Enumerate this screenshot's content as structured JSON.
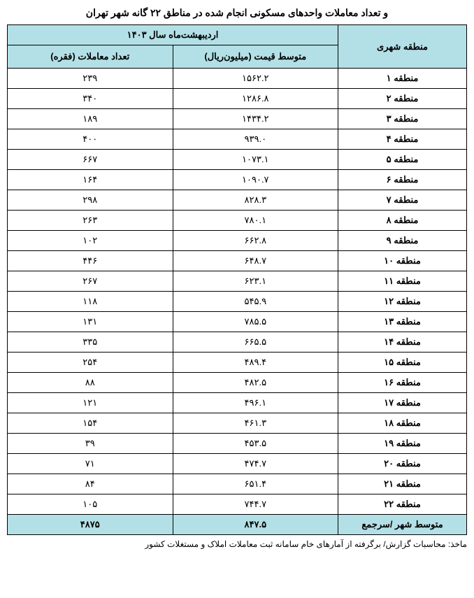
{
  "title": "و تعداد معاملات واحدهای مسکونی انجام شده در مناطق ۲۲ گانه شهر تهران",
  "headers": {
    "district": "منطقه شهری",
    "period": "اردیبهشت‌ماه سال ۱۴۰۳",
    "avgPrice": "متوسط قیمت (میلیون‌ریال)",
    "count": "تعداد معاملات (فقره)"
  },
  "rows": [
    {
      "district": "منطقه ۱",
      "price": "۱۵۶۲.۲",
      "count": "۲۳۹"
    },
    {
      "district": "منطقه ۲",
      "price": "۱۲۸۶.۸",
      "count": "۳۴۰"
    },
    {
      "district": "منطقه ۳",
      "price": "۱۴۳۴.۲",
      "count": "۱۸۹"
    },
    {
      "district": "منطقه ۴",
      "price": "۹۳۹.۰",
      "count": "۴۰۰"
    },
    {
      "district": "منطقه ۵",
      "price": "۱۰۷۳.۱",
      "count": "۶۶۷"
    },
    {
      "district": "منطقه ۶",
      "price": "۱۰۹۰.۷",
      "count": "۱۶۴"
    },
    {
      "district": "منطقه ۷",
      "price": "۸۲۸.۳",
      "count": "۲۹۸"
    },
    {
      "district": "منطقه ۸",
      "price": "۷۸۰.۱",
      "count": "۲۶۳"
    },
    {
      "district": "منطقه ۹",
      "price": "۶۶۲.۸",
      "count": "۱۰۲"
    },
    {
      "district": "منطقه ۱۰",
      "price": "۶۴۸.۷",
      "count": "۴۴۶"
    },
    {
      "district": "منطقه ۱۱",
      "price": "۶۲۳.۱",
      "count": "۲۶۷"
    },
    {
      "district": "منطقه ۱۲",
      "price": "۵۴۵.۹",
      "count": "۱۱۸"
    },
    {
      "district": "منطقه ۱۳",
      "price": "۷۸۵.۵",
      "count": "۱۳۱"
    },
    {
      "district": "منطقه ۱۴",
      "price": "۶۶۵.۵",
      "count": "۳۳۵"
    },
    {
      "district": "منطقه ۱۵",
      "price": "۴۸۹.۴",
      "count": "۲۵۴"
    },
    {
      "district": "منطقه ۱۶",
      "price": "۴۸۲.۵",
      "count": "۸۸"
    },
    {
      "district": "منطقه ۱۷",
      "price": "۴۹۶.۱",
      "count": "۱۲۱"
    },
    {
      "district": "منطقه ۱۸",
      "price": "۴۶۱.۳",
      "count": "۱۵۴"
    },
    {
      "district": "منطقه ۱۹",
      "price": "۴۵۳.۵",
      "count": "۳۹"
    },
    {
      "district": "منطقه ۲۰",
      "price": "۴۷۴.۷",
      "count": "۷۱"
    },
    {
      "district": "منطقه ۲۱",
      "price": "۶۵۱.۴",
      "count": "۸۴"
    },
    {
      "district": "منطقه ۲۲",
      "price": "۷۴۴.۷",
      "count": "۱۰۵"
    }
  ],
  "total": {
    "district": "متوسط شهر /سرجمع",
    "price": "۸۴۷.۵",
    "count": "۴۸۷۵"
  },
  "source": "ماخذ: محاسبات گزارش/ برگرفته از آمارهای خام سامانه ثبت معاملات املاک و مستغلات کشور",
  "styling": {
    "headerBg": "#b3e0e6",
    "borderColor": "#000000",
    "fontSize": 13,
    "titleFontSize": 14,
    "sourceFontSize": 12
  }
}
